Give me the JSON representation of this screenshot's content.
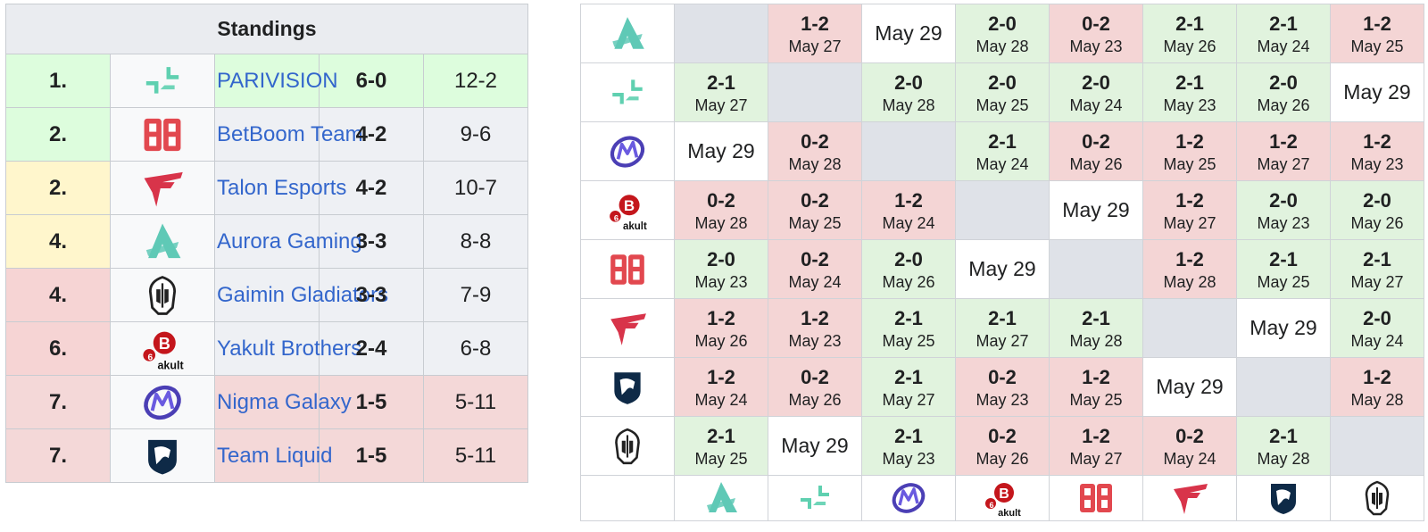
{
  "standings": {
    "title": "Standings",
    "rows": [
      {
        "rank": "1.",
        "team": "PARIVISION",
        "record": "6-0",
        "games": "12-2",
        "logo": "parivision-logo"
      },
      {
        "rank": "2.",
        "team": "BetBoom Team",
        "record": "4-2",
        "games": "9-6",
        "logo": "betboom-logo"
      },
      {
        "rank": "2.",
        "team": "Talon Esports",
        "record": "4-2",
        "games": "10-7",
        "logo": "talon-logo"
      },
      {
        "rank": "4.",
        "team": "Aurora Gaming",
        "record": "3-3",
        "games": "8-8",
        "logo": "aurora-logo"
      },
      {
        "rank": "4.",
        "team": "Gaimin Gladiators",
        "record": "3-3",
        "games": "7-9",
        "logo": "gladiators-logo"
      },
      {
        "rank": "6.",
        "team": "Yakult Brothers",
        "record": "2-4",
        "games": "6-8",
        "logo": "yakult-logo"
      },
      {
        "rank": "7.",
        "team": "Nigma Galaxy",
        "record": "1-5",
        "games": "5-11",
        "logo": "nigma-logo"
      },
      {
        "rank": "7.",
        "team": "Team Liquid",
        "record": "1-5",
        "games": "5-11",
        "logo": "liquid-logo"
      }
    ]
  },
  "crosstable": {
    "order": [
      "aurora-logo",
      "parivision-logo",
      "nigma-logo",
      "yakult-logo",
      "betboom-logo",
      "talon-logo",
      "liquid-logo",
      "gladiators-logo"
    ],
    "rows": [
      {
        "logo": "aurora-logo",
        "cells": [
          {
            "t": "self"
          },
          {
            "t": "loss",
            "s": "1-2",
            "d": "May 27"
          },
          {
            "t": "tbd",
            "d": "May 29"
          },
          {
            "t": "win",
            "s": "2-0",
            "d": "May 28"
          },
          {
            "t": "loss",
            "s": "0-2",
            "d": "May 23"
          },
          {
            "t": "win",
            "s": "2-1",
            "d": "May 26"
          },
          {
            "t": "win",
            "s": "2-1",
            "d": "May 24"
          },
          {
            "t": "loss",
            "s": "1-2",
            "d": "May 25"
          }
        ]
      },
      {
        "logo": "parivision-logo",
        "cells": [
          {
            "t": "win",
            "s": "2-1",
            "d": "May 27"
          },
          {
            "t": "self"
          },
          {
            "t": "win",
            "s": "2-0",
            "d": "May 28"
          },
          {
            "t": "win",
            "s": "2-0",
            "d": "May 25"
          },
          {
            "t": "win",
            "s": "2-0",
            "d": "May 24"
          },
          {
            "t": "win",
            "s": "2-1",
            "d": "May 23"
          },
          {
            "t": "win",
            "s": "2-0",
            "d": "May 26"
          },
          {
            "t": "tbd",
            "d": "May 29"
          }
        ]
      },
      {
        "logo": "nigma-logo",
        "cells": [
          {
            "t": "tbd",
            "d": "May 29"
          },
          {
            "t": "loss",
            "s": "0-2",
            "d": "May 28"
          },
          {
            "t": "self"
          },
          {
            "t": "win",
            "s": "2-1",
            "d": "May 24"
          },
          {
            "t": "loss",
            "s": "0-2",
            "d": "May 26"
          },
          {
            "t": "loss",
            "s": "1-2",
            "d": "May 25"
          },
          {
            "t": "loss",
            "s": "1-2",
            "d": "May 27"
          },
          {
            "t": "loss",
            "s": "1-2",
            "d": "May 23"
          }
        ]
      },
      {
        "logo": "yakult-logo",
        "cells": [
          {
            "t": "loss",
            "s": "0-2",
            "d": "May 28"
          },
          {
            "t": "loss",
            "s": "0-2",
            "d": "May 25"
          },
          {
            "t": "loss",
            "s": "1-2",
            "d": "May 24"
          },
          {
            "t": "self"
          },
          {
            "t": "tbd",
            "d": "May 29"
          },
          {
            "t": "loss",
            "s": "1-2",
            "d": "May 27"
          },
          {
            "t": "win",
            "s": "2-0",
            "d": "May 23"
          },
          {
            "t": "win",
            "s": "2-0",
            "d": "May 26"
          }
        ]
      },
      {
        "logo": "betboom-logo",
        "cells": [
          {
            "t": "win",
            "s": "2-0",
            "d": "May 23"
          },
          {
            "t": "loss",
            "s": "0-2",
            "d": "May 24"
          },
          {
            "t": "win",
            "s": "2-0",
            "d": "May 26"
          },
          {
            "t": "tbd",
            "d": "May 29"
          },
          {
            "t": "self"
          },
          {
            "t": "loss",
            "s": "1-2",
            "d": "May 28"
          },
          {
            "t": "win",
            "s": "2-1",
            "d": "May 25"
          },
          {
            "t": "win",
            "s": "2-1",
            "d": "May 27"
          }
        ]
      },
      {
        "logo": "talon-logo",
        "cells": [
          {
            "t": "loss",
            "s": "1-2",
            "d": "May 26"
          },
          {
            "t": "loss",
            "s": "1-2",
            "d": "May 23"
          },
          {
            "t": "win",
            "s": "2-1",
            "d": "May 25"
          },
          {
            "t": "win",
            "s": "2-1",
            "d": "May 27"
          },
          {
            "t": "win",
            "s": "2-1",
            "d": "May 28"
          },
          {
            "t": "self"
          },
          {
            "t": "tbd",
            "d": "May 29"
          },
          {
            "t": "win",
            "s": "2-0",
            "d": "May 24"
          }
        ]
      },
      {
        "logo": "liquid-logo",
        "cells": [
          {
            "t": "loss",
            "s": "1-2",
            "d": "May 24"
          },
          {
            "t": "loss",
            "s": "0-2",
            "d": "May 26"
          },
          {
            "t": "win",
            "s": "2-1",
            "d": "May 27"
          },
          {
            "t": "loss",
            "s": "0-2",
            "d": "May 23"
          },
          {
            "t": "loss",
            "s": "1-2",
            "d": "May 25"
          },
          {
            "t": "tbd",
            "d": "May 29"
          },
          {
            "t": "self"
          },
          {
            "t": "loss",
            "s": "1-2",
            "d": "May 28"
          }
        ]
      },
      {
        "logo": "gladiators-logo",
        "cells": [
          {
            "t": "win",
            "s": "2-1",
            "d": "May 25"
          },
          {
            "t": "tbd",
            "d": "May 29"
          },
          {
            "t": "win",
            "s": "2-1",
            "d": "May 23"
          },
          {
            "t": "loss",
            "s": "0-2",
            "d": "May 26"
          },
          {
            "t": "loss",
            "s": "1-2",
            "d": "May 27"
          },
          {
            "t": "loss",
            "s": "0-2",
            "d": "May 24"
          },
          {
            "t": "win",
            "s": "2-1",
            "d": "May 28"
          },
          {
            "t": "self"
          }
        ]
      }
    ]
  },
  "colors": {
    "win": "#e1f3de",
    "loss": "#f4d5d5",
    "self": "#dfe2e8",
    "link": "#3366cc",
    "aurora": "#5fc9b6",
    "parivision": "#5fd0b0",
    "betboom": "#e2484f",
    "talon": "#d8344a",
    "nigma": "#4b3fb5",
    "liquid": "#0e2a47"
  }
}
